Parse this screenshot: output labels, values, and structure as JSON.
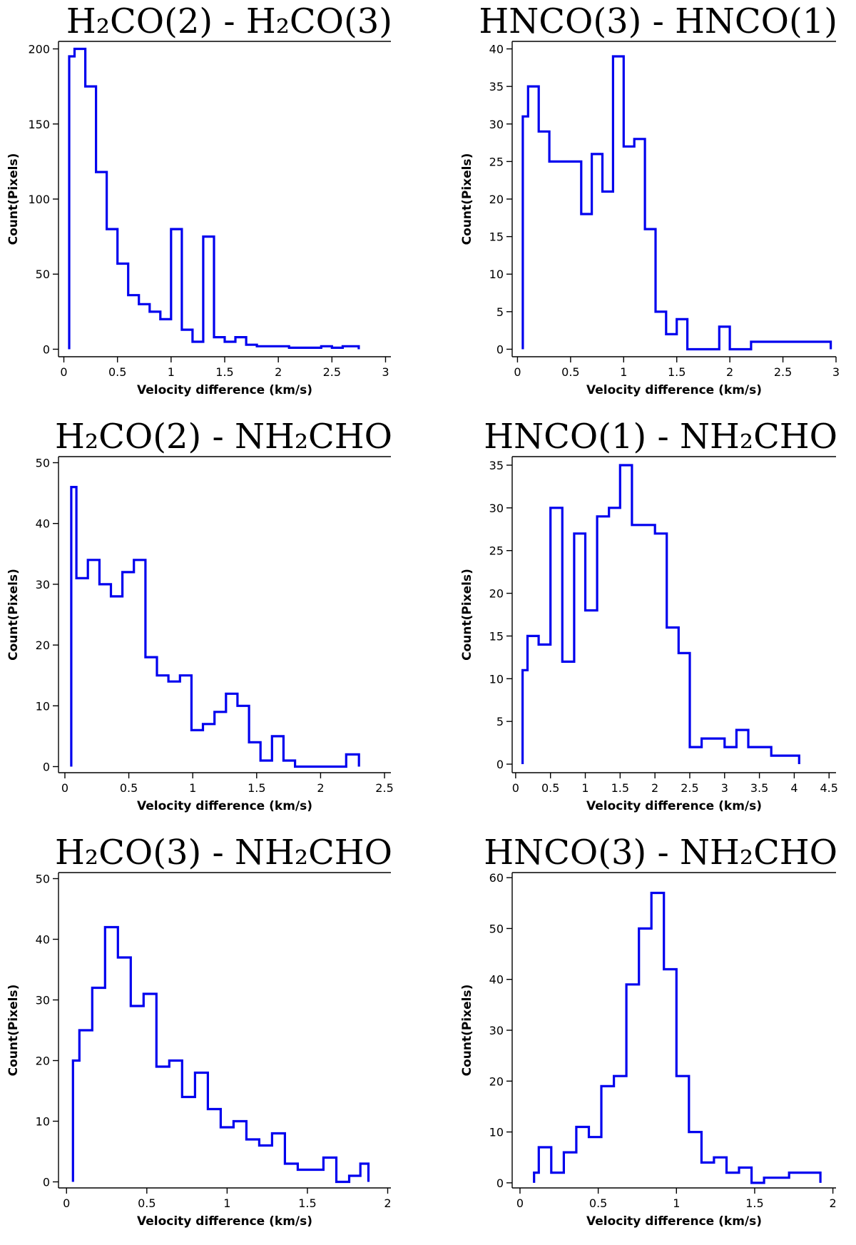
{
  "chart_data": [
    {
      "type": "bar",
      "title": "H₂CO(2) - H₂CO(3)",
      "xlabel": "Velocity difference (km/s)",
      "ylabel": "Count(Pixels)",
      "xlim": [
        -0.05,
        3.05
      ],
      "ylim": [
        -5,
        205
      ],
      "xticks": [
        0,
        0.5,
        1,
        1.5,
        2,
        2.5,
        3
      ],
      "xtick_labels": [
        "0",
        "0.5",
        "1",
        "1.5",
        "2",
        "2.5",
        "3"
      ],
      "yticks": [
        0,
        50,
        100,
        150,
        200
      ],
      "ytick_labels": [
        "0",
        "50",
        "100",
        "150",
        "200"
      ],
      "bin_edges": [
        0.05,
        0.1,
        0.2,
        0.3,
        0.4,
        0.5,
        0.6,
        0.7,
        0.8,
        0.9,
        1.0,
        1.1,
        1.2,
        1.3,
        1.4,
        1.5,
        1.6,
        1.7,
        1.8,
        1.9,
        2.0,
        2.1,
        2.2,
        2.3,
        2.4,
        2.5,
        2.6,
        2.7,
        2.75
      ],
      "counts": [
        195,
        200,
        175,
        118,
        80,
        57,
        36,
        30,
        25,
        20,
        80,
        13,
        5,
        75,
        8,
        5,
        8,
        3,
        2,
        2,
        2,
        1,
        1,
        1,
        2,
        1,
        2,
        2
      ],
      "grid": false,
      "legend": "none"
    },
    {
      "type": "bar",
      "title": "HNCO(3) - HNCO(1)",
      "xlabel": "Velocity difference (km/s)",
      "ylabel": "Count(Pixels)",
      "xlim": [
        -0.05,
        3.0
      ],
      "ylim": [
        -1,
        41
      ],
      "xticks": [
        0,
        0.5,
        1,
        1.5,
        2,
        2.5,
        3
      ],
      "xtick_labels": [
        "0",
        "0.5",
        "1",
        "1.5",
        "2",
        "2.5",
        "3"
      ],
      "yticks": [
        0,
        5,
        10,
        15,
        20,
        25,
        30,
        35,
        40
      ],
      "ytick_labels": [
        "0",
        "5",
        "10",
        "15",
        "20",
        "25",
        "30",
        "35",
        "40"
      ],
      "bin_edges": [
        0.05,
        0.1,
        0.2,
        0.3,
        0.4,
        0.5,
        0.6,
        0.7,
        0.8,
        0.9,
        1.0,
        1.1,
        1.2,
        1.3,
        1.4,
        1.5,
        1.6,
        1.7,
        1.8,
        1.9,
        2.0,
        2.1,
        2.2,
        2.9,
        2.95
      ],
      "counts": [
        31,
        35,
        29,
        25,
        25,
        25,
        18,
        26,
        21,
        39,
        27,
        28,
        16,
        5,
        2,
        4,
        0,
        0,
        0,
        3,
        0,
        0,
        1,
        1
      ],
      "grid": false,
      "legend": "none"
    },
    {
      "type": "bar",
      "title": "H₂CO(2) - NH₂CHO",
      "xlabel": "Velocity difference (km/s)",
      "ylabel": "Count(Pixels)",
      "xlim": [
        -0.05,
        2.55
      ],
      "ylim": [
        -1,
        51
      ],
      "xticks": [
        0,
        0.5,
        1,
        1.5,
        2,
        2.5
      ],
      "xtick_labels": [
        "0",
        "0.5",
        "1",
        "1.5",
        "2",
        "2.5"
      ],
      "yticks": [
        0,
        10,
        20,
        30,
        40,
        50
      ],
      "ytick_labels": [
        "0",
        "10",
        "20",
        "30",
        "40",
        "50"
      ],
      "bin_edges": [
        0.05,
        0.09,
        0.18,
        0.27,
        0.36,
        0.45,
        0.54,
        0.63,
        0.72,
        0.81,
        0.9,
        0.99,
        1.08,
        1.17,
        1.26,
        1.35,
        1.44,
        1.53,
        1.62,
        1.71,
        1.8,
        1.89,
        2.2,
        2.3
      ],
      "counts": [
        46,
        31,
        34,
        30,
        28,
        32,
        34,
        18,
        15,
        14,
        15,
        6,
        7,
        9,
        12,
        10,
        4,
        1,
        5,
        1,
        0,
        0,
        2
      ],
      "grid": false,
      "legend": "none"
    },
    {
      "type": "bar",
      "title": "HNCO(1) - NH₂CHO",
      "xlabel": "Velocity difference (km/s)",
      "ylabel": "Count(Pixels)",
      "xlim": [
        -0.05,
        4.6
      ],
      "ylim": [
        -1,
        36
      ],
      "xticks": [
        0,
        0.5,
        1,
        1.5,
        2,
        2.5,
        3,
        3.5,
        4,
        4.5
      ],
      "xtick_labels": [
        "0",
        "0.5",
        "1",
        "1.5",
        "2",
        "2.5",
        "3",
        "3.5",
        "4",
        "4.5"
      ],
      "yticks": [
        0,
        5,
        10,
        15,
        20,
        25,
        30,
        35
      ],
      "ytick_labels": [
        "0",
        "5",
        "10",
        "15",
        "20",
        "25",
        "30",
        "35"
      ],
      "bin_edges": [
        0.1,
        0.17,
        0.33,
        0.5,
        0.67,
        0.84,
        1.0,
        1.17,
        1.34,
        1.5,
        1.67,
        1.84,
        2.0,
        2.17,
        2.34,
        2.5,
        2.67,
        2.84,
        3.0,
        3.17,
        3.34,
        3.5,
        3.67,
        3.84,
        4.07
      ],
      "counts": [
        11,
        15,
        14,
        30,
        12,
        27,
        18,
        29,
        30,
        35,
        28,
        28,
        27,
        16,
        13,
        2,
        3,
        3,
        2,
        4,
        2,
        2,
        1,
        1
      ],
      "grid": false,
      "legend": "none"
    },
    {
      "type": "bar",
      "title": "H₂CO(3) - NH₂CHO",
      "xlabel": "Velocity difference (km/s)",
      "ylabel": "Count(Pixels)",
      "xlim": [
        -0.05,
        2.02
      ],
      "ylim": [
        -1,
        51
      ],
      "xticks": [
        0,
        0.5,
        1,
        1.5,
        2
      ],
      "xtick_labels": [
        "0",
        "0.5",
        "1",
        "1.5",
        "2"
      ],
      "yticks": [
        0,
        10,
        20,
        30,
        40,
        50
      ],
      "ytick_labels": [
        "0",
        "10",
        "20",
        "30",
        "40",
        "50"
      ],
      "bin_edges": [
        0.04,
        0.08,
        0.16,
        0.24,
        0.32,
        0.4,
        0.48,
        0.56,
        0.64,
        0.72,
        0.8,
        0.88,
        0.96,
        1.04,
        1.12,
        1.2,
        1.28,
        1.36,
        1.44,
        1.52,
        1.6,
        1.68,
        1.76,
        1.83,
        1.88
      ],
      "counts": [
        20,
        25,
        32,
        42,
        37,
        29,
        31,
        19,
        20,
        14,
        18,
        12,
        9,
        10,
        7,
        6,
        8,
        3,
        2,
        2,
        4,
        0,
        1,
        3
      ],
      "grid": false,
      "legend": "none"
    },
    {
      "type": "bar",
      "title": "HNCO(3) - NH₂CHO",
      "xlabel": "Velocity difference (km/s)",
      "ylabel": "Count(Pixels)",
      "xlim": [
        -0.05,
        2.02
      ],
      "ylim": [
        -1,
        61
      ],
      "xticks": [
        0,
        0.5,
        1,
        1.5,
        2
      ],
      "xtick_labels": [
        "0",
        "0.5",
        "1",
        "1.5",
        "2"
      ],
      "yticks": [
        0,
        10,
        20,
        30,
        40,
        50,
        60
      ],
      "ytick_labels": [
        "0",
        "10",
        "20",
        "30",
        "40",
        "50",
        "60"
      ],
      "bin_edges": [
        0.09,
        0.12,
        0.2,
        0.28,
        0.36,
        0.44,
        0.52,
        0.6,
        0.68,
        0.76,
        0.84,
        0.92,
        1.0,
        1.08,
        1.16,
        1.24,
        1.32,
        1.4,
        1.48,
        1.56,
        1.64,
        1.72,
        1.92
      ],
      "counts": [
        2,
        7,
        2,
        6,
        11,
        9,
        19,
        21,
        39,
        50,
        57,
        42,
        21,
        10,
        4,
        5,
        2,
        3,
        0,
        1,
        1,
        2
      ],
      "grid": false,
      "legend": "none"
    }
  ]
}
